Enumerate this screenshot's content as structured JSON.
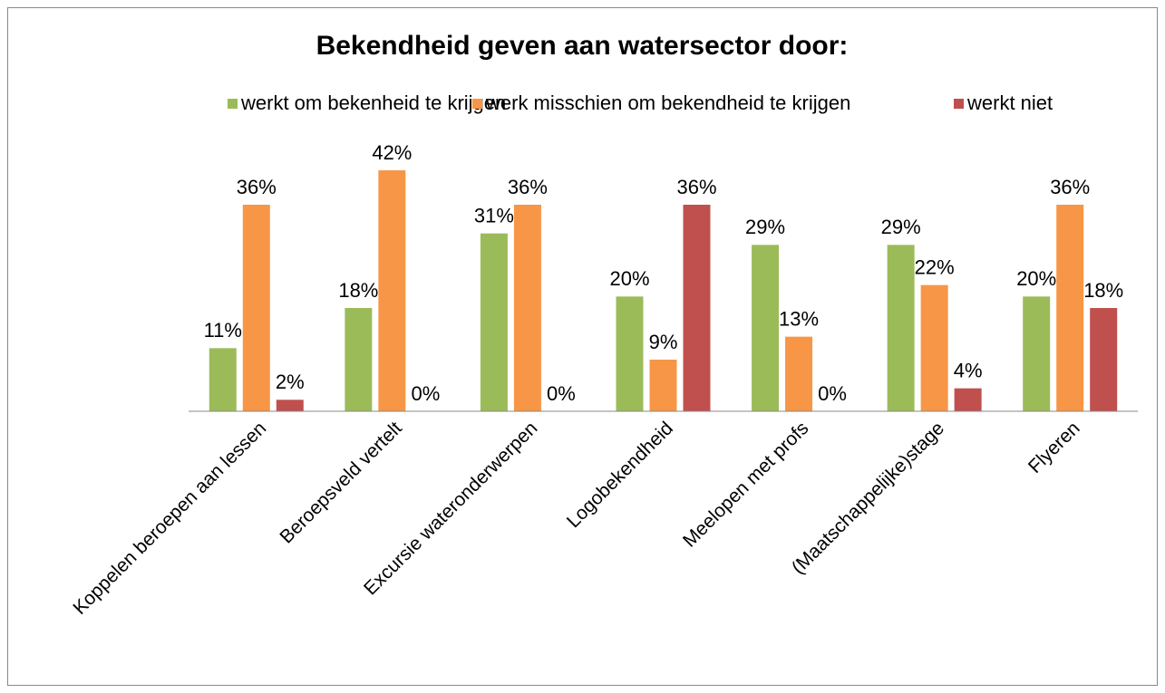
{
  "chart_data": {
    "type": "bar",
    "title": "Bekendheid geven aan watersector door:",
    "categories": [
      "Koppelen beroepen aan lessen",
      "Beroepsveld vertelt",
      "Excursie wateronderwerpen",
      "Logobekendheid",
      "Meelopen met profs",
      "(Maatschappelijke)stage",
      "Flyeren"
    ],
    "series": [
      {
        "name": "werkt om bekenheid te krijgen",
        "color": "#9bbb59",
        "values": [
          11,
          18,
          31,
          20,
          29,
          29,
          20
        ],
        "value_labels": [
          "11%",
          "18%",
          "31%",
          "20%",
          "29%",
          "29%",
          "20%"
        ]
      },
      {
        "name": "werk misschien om bekendheid te krijgen",
        "color": "#f79646",
        "values": [
          36,
          42,
          36,
          9,
          13,
          22,
          36
        ],
        "value_labels": [
          "36%",
          "42%",
          "36%",
          "9%",
          "13%",
          "22%",
          "36%"
        ]
      },
      {
        "name": "werkt niet",
        "color": "#c0504d",
        "values": [
          2,
          0,
          0,
          36,
          0,
          4,
          18
        ],
        "value_labels": [
          "2%",
          "0%",
          "0%",
          "36%",
          "0%",
          "4%",
          "18%"
        ]
      }
    ],
    "ylim": [
      0,
      45
    ],
    "legend": "top"
  }
}
